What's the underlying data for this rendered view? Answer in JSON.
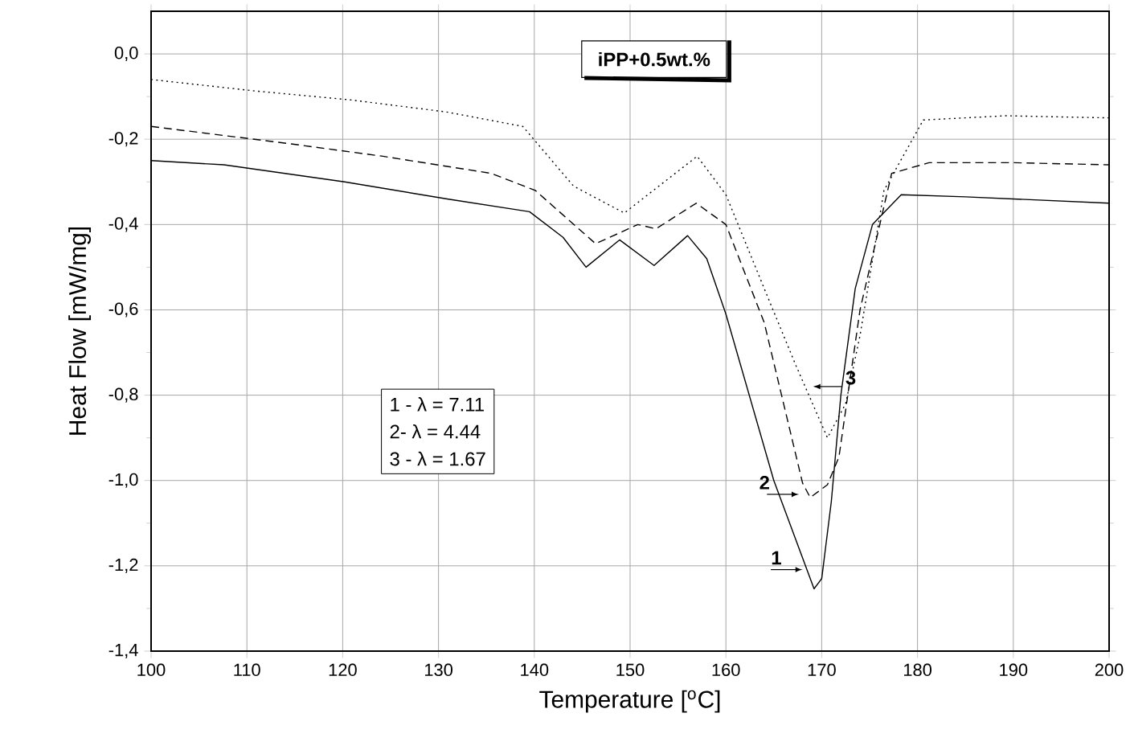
{
  "chart_data": {
    "type": "line",
    "title": "iPP+0.5wt.%",
    "xlabel": "Temperature [$^{o}$C]",
    "ylabel": "Heat Flow [mW/mg]",
    "xlim": [
      100,
      200
    ],
    "ylim": [
      -1.4,
      0.1
    ],
    "xticks": [
      100,
      110,
      120,
      130,
      140,
      150,
      160,
      170,
      180,
      190,
      200
    ],
    "yticks": [
      {
        "value": -1.4,
        "label": "-1,4"
      },
      {
        "value": -1.2,
        "label": "-1,2"
      },
      {
        "value": -1.0,
        "label": "-1,0"
      },
      {
        "value": -0.8,
        "label": "-0,8"
      },
      {
        "value": -0.6,
        "label": "-0,6"
      },
      {
        "value": -0.4,
        "label": "-0,4"
      },
      {
        "value": -0.2,
        "label": "-0,2"
      },
      {
        "value": 0.0,
        "label": "0,0"
      }
    ],
    "grid": true,
    "marker": "none",
    "series": [
      {
        "color": "#000000",
        "line_style": "solid",
        "x": [
          100,
          107.6,
          120.2,
          130.9,
          139.5,
          143,
          145.4,
          148.9,
          152.5,
          156,
          158,
          160,
          165,
          169.2,
          170,
          171,
          172,
          173.5,
          175.3,
          178.3,
          185,
          200
        ],
        "values": [
          -0.25,
          -0.26,
          -0.3,
          -0.34,
          -0.37,
          -0.43,
          -0.5,
          -0.436,
          -0.496,
          -0.426,
          -0.48,
          -0.61,
          -1.0,
          -1.254,
          -1.23,
          -1.05,
          -0.8,
          -0.55,
          -0.4,
          -0.33,
          -0.335,
          -0.35
        ]
      },
      {
        "color": "#000000",
        "line_style": "dashed",
        "x": [
          100,
          114.3,
          124.2,
          135.5,
          140.1,
          146.4,
          150.8,
          152.7,
          156.9,
          160,
          164,
          168,
          168.8,
          170.6,
          171.8,
          174,
          177.3,
          181.2,
          190,
          200
        ],
        "values": [
          -0.17,
          -0.21,
          -0.24,
          -0.28,
          -0.32,
          -0.445,
          -0.4,
          -0.41,
          -0.35,
          -0.4,
          -0.63,
          -1.006,
          -1.04,
          -1.01,
          -0.945,
          -0.6,
          -0.28,
          -0.255,
          -0.255,
          -0.26
        ]
      },
      {
        "color": "#000000",
        "line_style": "dotted",
        "x": [
          100,
          110.9,
          120.9,
          130.8,
          138.8,
          144.1,
          149.4,
          157,
          160,
          164,
          167.3,
          170.6,
          172.5,
          174,
          176.5,
          180.6,
          189.2,
          200
        ],
        "values": [
          -0.06,
          -0.087,
          -0.108,
          -0.136,
          -0.17,
          -0.31,
          -0.373,
          -0.24,
          -0.33,
          -0.55,
          -0.73,
          -0.9,
          -0.82,
          -0.66,
          -0.32,
          -0.155,
          -0.145,
          -0.15
        ]
      }
    ],
    "annotations": [
      "1 - λ = 7.11",
      "2-  λ = 4.44",
      "3 - λ = 1.67",
      "1",
      "2",
      "3"
    ]
  }
}
